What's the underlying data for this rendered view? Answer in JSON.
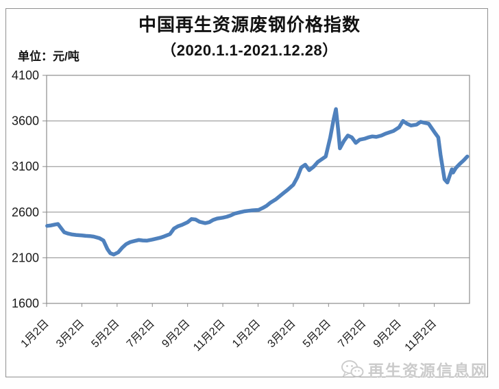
{
  "header": {
    "title": "中国再生资源废钢价格指数",
    "subtitle": "（2020.1.1-2021.12.28）",
    "unit_label": "单位：元/吨"
  },
  "watermark": {
    "label": "再生资源信息网",
    "icon": "wechat-icon"
  },
  "colors": {
    "line": "#4F81BD",
    "grid": "#8c8c8c",
    "frame": "#8f8f8f",
    "text": "#1a1a1a",
    "watermark": "#cbcbcb"
  },
  "chart_data": {
    "type": "line",
    "title": "中国再生资源废钢价格指数",
    "subtitle": "（2020.1.1-2021.12.28）",
    "ylabel": "元/吨",
    "xlabel": "",
    "ylim": [
      1600,
      4100
    ],
    "ytick_interval": 500,
    "yticks": [
      1600,
      2100,
      2600,
      3100,
      3600,
      4100
    ],
    "xticks": [
      "1月2日",
      "3月2日",
      "5月2日",
      "7月2日",
      "9月2日",
      "11月2日",
      "1月2日",
      "3月2日",
      "5月2日",
      "7月2日",
      "9月2日",
      "11月2日"
    ],
    "x_span_months": 24,
    "grid": "horizontal",
    "legend": "none",
    "series": [
      {
        "name": "废钢价格指数",
        "dates": [
          "2020-01-02",
          "2020-01-09",
          "2020-01-16",
          "2020-01-21",
          "2020-02-01",
          "2020-02-08",
          "2020-02-15",
          "2020-02-22",
          "2020-03-01",
          "2020-03-08",
          "2020-03-15",
          "2020-03-22",
          "2020-04-01",
          "2020-04-08",
          "2020-04-15",
          "2020-04-20",
          "2020-04-26",
          "2020-05-03",
          "2020-05-10",
          "2020-05-17",
          "2020-05-24",
          "2020-06-01",
          "2020-06-08",
          "2020-06-15",
          "2020-06-22",
          "2020-07-01",
          "2020-07-08",
          "2020-07-15",
          "2020-07-22",
          "2020-08-01",
          "2020-08-08",
          "2020-08-15",
          "2020-08-22",
          "2020-09-01",
          "2020-09-08",
          "2020-09-15",
          "2020-09-22",
          "2020-10-01",
          "2020-10-08",
          "2020-10-15",
          "2020-10-22",
          "2020-11-01",
          "2020-11-08",
          "2020-11-15",
          "2020-11-22",
          "2020-12-01",
          "2020-12-08",
          "2020-12-15",
          "2020-12-22",
          "2021-01-02",
          "2021-01-09",
          "2021-01-16",
          "2021-01-23",
          "2021-02-01",
          "2021-02-08",
          "2021-02-15",
          "2021-02-22",
          "2021-03-01",
          "2021-03-08",
          "2021-03-15",
          "2021-03-22",
          "2021-03-29",
          "2021-04-06",
          "2021-04-13",
          "2021-04-20",
          "2021-04-27",
          "2021-05-04",
          "2021-05-10",
          "2021-05-14",
          "2021-05-18",
          "2021-05-21",
          "2021-05-28",
          "2021-06-04",
          "2021-06-11",
          "2021-06-18",
          "2021-06-25",
          "2021-07-02",
          "2021-07-09",
          "2021-07-16",
          "2021-07-23",
          "2021-08-01",
          "2021-08-08",
          "2021-08-15",
          "2021-08-22",
          "2021-09-01",
          "2021-09-08",
          "2021-09-15",
          "2021-09-22",
          "2021-10-01",
          "2021-10-08",
          "2021-10-15",
          "2021-10-22",
          "2021-11-01",
          "2021-11-08",
          "2021-11-12",
          "2021-11-19",
          "2021-11-24",
          "2021-12-01",
          "2021-12-03",
          "2021-12-08",
          "2021-12-15",
          "2021-12-22",
          "2021-12-28"
        ],
        "values": [
          2450,
          2455,
          2465,
          2470,
          2380,
          2365,
          2355,
          2350,
          2345,
          2340,
          2338,
          2332,
          2315,
          2290,
          2195,
          2150,
          2135,
          2160,
          2210,
          2250,
          2272,
          2285,
          2295,
          2290,
          2288,
          2300,
          2310,
          2320,
          2335,
          2360,
          2420,
          2445,
          2460,
          2490,
          2525,
          2520,
          2495,
          2480,
          2490,
          2515,
          2530,
          2540,
          2550,
          2565,
          2585,
          2600,
          2610,
          2615,
          2620,
          2625,
          2645,
          2670,
          2705,
          2740,
          2775,
          2810,
          2845,
          2900,
          2980,
          3090,
          3120,
          3060,
          3100,
          3150,
          3180,
          3210,
          3420,
          3620,
          3730,
          3500,
          3300,
          3380,
          3440,
          3420,
          3360,
          3395,
          3405,
          3420,
          3430,
          3425,
          3440,
          3460,
          3475,
          3490,
          3530,
          3600,
          3570,
          3550,
          3560,
          3590,
          3580,
          3570,
          3480,
          3420,
          3230,
          2960,
          2925,
          3070,
          3035,
          3085,
          3130,
          3170,
          3210
        ]
      }
    ]
  }
}
